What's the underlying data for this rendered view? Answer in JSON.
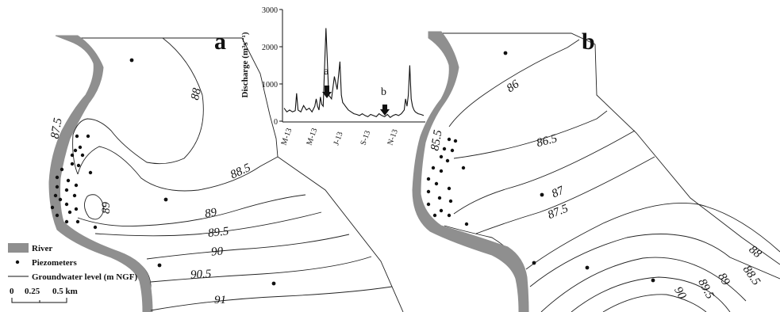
{
  "panels": {
    "a": {
      "letter": "a",
      "contours": [
        "87.5",
        "88",
        "88.5",
        "89",
        "89",
        "89.5",
        "90",
        "90.5",
        "91"
      ]
    },
    "b": {
      "letter": "b",
      "contours": [
        "85.5",
        "86",
        "86.5",
        "87",
        "87.5",
        "88",
        "88.5",
        "89",
        "89.5",
        "90"
      ]
    }
  },
  "legend": {
    "river": "River",
    "piezometers": "Piezometers",
    "groundwater": "Groundwater level (m NGF)",
    "scale_labels": [
      "0",
      "0.25",
      "0.5 km"
    ]
  },
  "inset": {
    "ylabel": "Discharge (m³s⁻¹)",
    "yticks": [
      "3000",
      "2000",
      "1000",
      "0"
    ],
    "xticks": [
      "M-13",
      "M-13",
      "J-13",
      "S-13",
      "N-13"
    ],
    "markers": [
      "a",
      "b"
    ]
  },
  "chart_data": {
    "type": "line",
    "ylabel": "Discharge (m³s⁻¹)",
    "ylim": [
      0,
      3000
    ],
    "x_tick_labels": [
      "M-13",
      "M-13",
      "J-13",
      "S-13",
      "N-13"
    ],
    "series": [
      {
        "x": [
          0,
          2,
          4,
          6,
          8,
          9,
          10,
          12,
          14,
          16,
          18,
          20,
          22,
          23,
          24,
          25,
          26,
          27,
          28,
          30,
          32,
          34,
          36,
          38,
          40,
          41,
          42,
          43,
          44,
          45,
          46,
          48,
          50,
          52,
          54,
          56,
          58,
          60,
          62,
          64,
          66,
          68,
          70,
          72,
          74,
          76,
          78,
          80,
          82,
          84,
          86,
          87,
          88,
          89,
          90,
          91,
          92,
          93,
          94,
          96,
          98,
          100
        ],
        "y": [
          350,
          250,
          300,
          250,
          280,
          750,
          300,
          250,
          420,
          300,
          350,
          250,
          400,
          600,
          400,
          300,
          650,
          450,
          400,
          2500,
          700,
          600,
          1200,
          850,
          1600,
          700,
          500,
          450,
          400,
          350,
          300,
          250,
          200,
          180,
          150,
          200,
          150,
          120,
          180,
          150,
          120,
          200,
          150,
          120,
          180,
          100,
          150,
          180,
          150,
          200,
          300,
          600,
          400,
          700,
          1500,
          600,
          400,
          300,
          250,
          200,
          180,
          150
        ]
      }
    ]
  }
}
